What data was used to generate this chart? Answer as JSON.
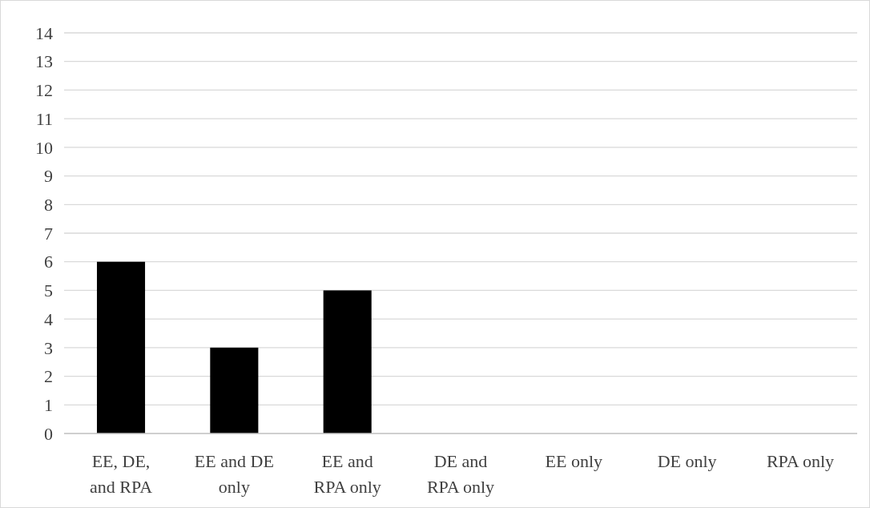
{
  "chart_data": {
    "type": "bar",
    "categories": [
      "EE, DE, and RPA",
      "EE and DE only",
      "EE and RPA only",
      "DE and RPA only",
      "EE only",
      "DE only",
      "RPA only"
    ],
    "values": [
      6,
      3,
      5,
      0,
      0,
      0,
      0
    ],
    "color": "#000000",
    "ylim": [
      0,
      14
    ],
    "yticks": [
      0,
      1,
      2,
      3,
      4,
      5,
      6,
      7,
      8,
      9,
      10,
      11,
      12,
      13,
      14
    ],
    "grid": "y"
  }
}
